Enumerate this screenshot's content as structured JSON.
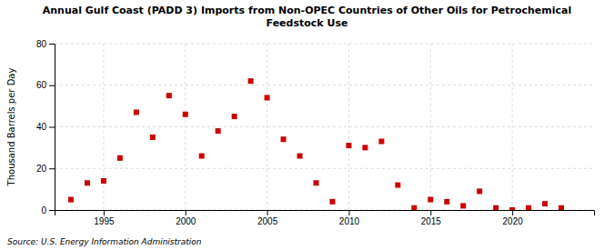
{
  "chart_data": {
    "type": "scatter",
    "title": "Annual Gulf Coast (PADD 3) Imports from Non-OPEC Countries of Other Oils for Petrochemical\nFeedstock Use",
    "y_label": "Thousand Barrels per Day",
    "source": "Source: U.S. Energy Information Administration",
    "x": [
      1993,
      1994,
      1995,
      1996,
      1997,
      1998,
      1999,
      2000,
      2001,
      2002,
      2003,
      2004,
      2005,
      2006,
      2007,
      2008,
      2009,
      2010,
      2011,
      2012,
      2013,
      2014,
      2015,
      2016,
      2017,
      2018,
      2019,
      2020,
      2021,
      2022,
      2023
    ],
    "values": [
      5,
      13,
      14,
      25,
      47,
      35,
      55,
      46,
      26,
      38,
      45,
      62,
      54,
      34,
      26,
      13,
      4,
      31,
      30,
      33,
      12,
      1,
      5,
      4,
      2,
      9,
      1,
      0,
      1,
      3,
      1
    ],
    "color": "#cc0000",
    "marker": "square",
    "xlim": [
      1992,
      2025
    ],
    "ylim": [
      0,
      80
    ],
    "xticks": [
      1995,
      2000,
      2005,
      2010,
      2015,
      2020
    ],
    "yticks": [
      0,
      20,
      40,
      60,
      80
    ],
    "grid": true
  }
}
